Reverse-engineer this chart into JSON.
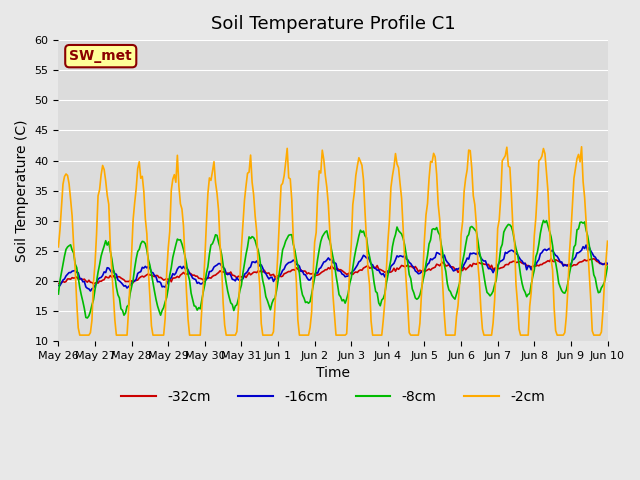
{
  "title": "Soil Temperature Profile C1",
  "xlabel": "Time",
  "ylabel": "Soil Temperature (C)",
  "ylim": [
    10,
    60
  ],
  "yticks": [
    10,
    15,
    20,
    25,
    30,
    35,
    40,
    45,
    50,
    55,
    60
  ],
  "x_labels": [
    "May 26",
    "May 27",
    "May 28",
    "May 29",
    "May 30",
    "May 31",
    "Jun 1",
    "Jun 2",
    "Jun 3",
    "Jun 4",
    "Jun 5",
    "Jun 6",
    "Jun 7",
    "Jun 8",
    "Jun 9",
    "Jun 10"
  ],
  "legend_label": "SW_met",
  "series_labels": [
    "-32cm",
    "-16cm",
    "-8cm",
    "-2cm"
  ],
  "series_colors": [
    "#cc0000",
    "#0000cc",
    "#00bb00",
    "#ffaa00"
  ],
  "background_color": "#e8e8e8",
  "plot_bg_color": "#dcdcdc",
  "title_fontsize": 13,
  "axis_fontsize": 10,
  "tick_fontsize": 8,
  "legend_fontsize": 10,
  "n_points": 361,
  "seed": 42,
  "depth_32_base": 20.0,
  "depth_32_trend": 0.009,
  "depth_32_amp": 0.5,
  "depth_16_base": 20.0,
  "depth_16_trend": 0.012,
  "depth_16_amp": 1.5,
  "depth_8_base": 20.0,
  "depth_8_trend": 0.012,
  "depth_8_amp": 6.0,
  "depth_2_base": 20.0,
  "depth_2_trend": 0.012,
  "depth_2_amp": 18.0,
  "depth_2_min": 11.0,
  "period_hours": 24
}
